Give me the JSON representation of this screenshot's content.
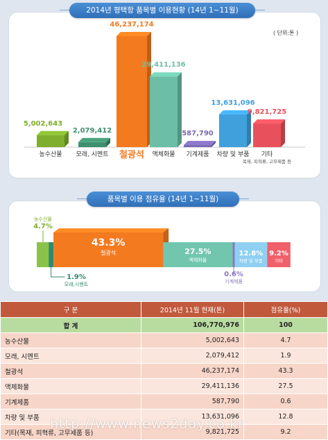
{
  "bar_section": {
    "title": "2014년 평택항 품목별 이용현황 (14년 1~11월)",
    "unit": "( 단위:톤 )"
  },
  "share_section": {
    "title": "품목별 이용 점유율 (14년 1~11월)"
  },
  "chart_data": [
    {
      "type": "bar",
      "title": "2014년 평택항 품목별 이용현황 (14년 1~11월)",
      "unit": "( 단위:톤 )",
      "categories": [
        "농수산물",
        "모래, 시멘트",
        "철광석",
        "액체화물",
        "기계제품",
        "차량 및 부품",
        "기타"
      ],
      "category_notes": [
        "",
        "",
        "",
        "",
        "",
        "",
        "목재, 피혁류, 고무제품 등"
      ],
      "values": [
        5002643,
        2079412,
        46237174,
        29411136,
        587790,
        13631096,
        9821725
      ],
      "value_labels": [
        "5,002,643",
        "2,079,412",
        "46,237,174",
        "29,411,136",
        "587,790",
        "13,631,096",
        "9,821,725"
      ],
      "colors": [
        "#7fae2e",
        "#3f8f6e",
        "#f47a20",
        "#6cbea6",
        "#7b6ab3",
        "#3fa0dc",
        "#e8515c"
      ],
      "ylim": [
        0,
        46237174
      ]
    },
    {
      "type": "bar",
      "orientation": "stacked-horizontal",
      "title": "품목별 이용 점유율 (14년 1~11월)",
      "segments": [
        {
          "name": "농수산물",
          "value": 4.7,
          "label": "4.7%",
          "color": "#8bc34a"
        },
        {
          "name": "모래,시멘트",
          "value": 1.9,
          "label": "1.9%",
          "color": "#2e8b6e"
        },
        {
          "name": "철광석",
          "value": 43.3,
          "label": "43.3%",
          "color": "#f47a20"
        },
        {
          "name": "액체화물",
          "value": 27.5,
          "label": "27.5%",
          "color": "#72c6ae"
        },
        {
          "name": "기계제품",
          "value": 0.6,
          "label": "0.6%",
          "color": "#8a78c0"
        },
        {
          "name": "차량 및 부품",
          "value": 12.8,
          "label": "12.8%",
          "color": "#8fd0f2"
        },
        {
          "name": "기타",
          "value": 9.2,
          "label": "9.2%",
          "color": "#f0606a"
        }
      ]
    },
    {
      "type": "table",
      "columns": [
        "구 분",
        "2014년 11월 현재(톤)",
        "점유율(%)"
      ],
      "total": {
        "name": "합 계",
        "value": "106,770,976",
        "share": "100"
      },
      "rows": [
        {
          "name": "농수산물",
          "value": "5,002,643",
          "share": "4.7"
        },
        {
          "name": "모래, 시멘트",
          "value": "2,079,412",
          "share": "1.9"
        },
        {
          "name": "철광석",
          "value": "46,237,174",
          "share": "43.3"
        },
        {
          "name": "액체화물",
          "value": "29,411,136",
          "share": "27.5"
        },
        {
          "name": "기계제품",
          "value": "587,790",
          "share": "0.6"
        },
        {
          "name": "차량 및 부품",
          "value": "13,631,096",
          "share": "12.8"
        },
        {
          "name": "기타(목재, 피혁류, 고무제품 등)",
          "value": "9,821,725",
          "share": "9.2"
        }
      ]
    }
  ],
  "watermark": "http://www.news2day.co.kr"
}
